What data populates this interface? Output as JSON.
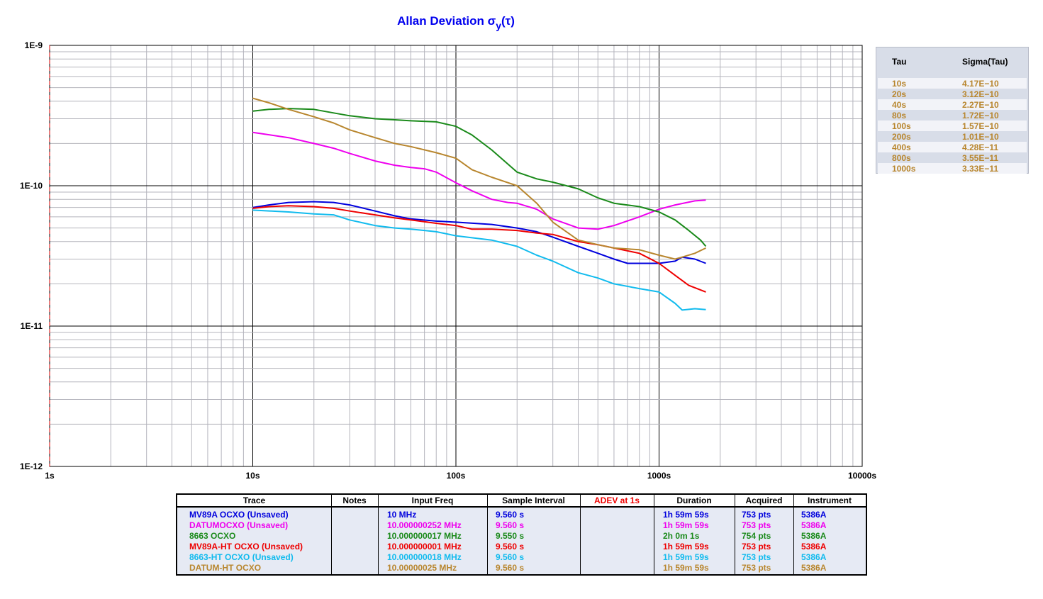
{
  "title_text": "Allan Deviation σ",
  "title_sub": "y",
  "title_tail": "(τ)",
  "chart_data": {
    "type": "line",
    "title": "Allan Deviation σy(τ)",
    "x_scale": "log",
    "y_scale": "log",
    "xlim": [
      1,
      10000
    ],
    "ylim": [
      1e-12,
      1e-09
    ],
    "grid": true,
    "x_ticks": [
      "1s",
      "10s",
      "100s",
      "1000s",
      "10000s"
    ],
    "y_ticks": [
      "1E-12",
      "1E-11",
      "1E-10",
      "1E-9"
    ],
    "series": [
      {
        "name": "MV89A OCXO (Unsaved)",
        "color": "#0000dd",
        "x": [
          10,
          12,
          15,
          20,
          25,
          30,
          40,
          50,
          60,
          80,
          100,
          150,
          200,
          250,
          300,
          400,
          500,
          600,
          700,
          800,
          1000,
          1200,
          1300,
          1500,
          1700
        ],
        "y": [
          7e-11,
          7.3e-11,
          7.6e-11,
          7.7e-11,
          7.6e-11,
          7.3e-11,
          6.6e-11,
          6.1e-11,
          5.8e-11,
          5.6e-11,
          5.5e-11,
          5.3e-11,
          5e-11,
          4.7e-11,
          4.3e-11,
          3.7e-11,
          3.3e-11,
          3e-11,
          2.8e-11,
          2.8e-11,
          2.8e-11,
          2.9e-11,
          3.1e-11,
          3e-11,
          2.8e-11
        ]
      },
      {
        "name": "DATUMOCXO (Unsaved)",
        "color": "#ee00ee",
        "x": [
          10,
          15,
          20,
          25,
          30,
          40,
          50,
          60,
          70,
          80,
          100,
          120,
          150,
          180,
          200,
          250,
          300,
          400,
          500,
          600,
          800,
          1000,
          1200,
          1500,
          1700
        ],
        "y": [
          2.4e-10,
          2.2e-10,
          2e-10,
          1.85e-10,
          1.7e-10,
          1.5e-10,
          1.4e-10,
          1.35e-10,
          1.32e-10,
          1.25e-10,
          1.05e-10,
          9.2e-11,
          8e-11,
          7.6e-11,
          7.5e-11,
          6.8e-11,
          5.8e-11,
          5e-11,
          4.9e-11,
          5.2e-11,
          6e-11,
          6.8e-11,
          7.3e-11,
          7.8e-11,
          7.9e-11
        ]
      },
      {
        "name": "8663 OCXO",
        "color": "#1a8a1a",
        "x": [
          10,
          12,
          15,
          20,
          25,
          30,
          40,
          50,
          60,
          80,
          100,
          120,
          150,
          200,
          250,
          300,
          400,
          500,
          600,
          800,
          1000,
          1200,
          1400,
          1600,
          1700
        ],
        "y": [
          3.4e-10,
          3.5e-10,
          3.55e-10,
          3.5e-10,
          3.3e-10,
          3.15e-10,
          3e-10,
          2.95e-10,
          2.9e-10,
          2.85e-10,
          2.65e-10,
          2.3e-10,
          1.8e-10,
          1.25e-10,
          1.12e-10,
          1.06e-10,
          9.5e-11,
          8.2e-11,
          7.5e-11,
          7.1e-11,
          6.5e-11,
          5.7e-11,
          4.8e-11,
          4.1e-11,
          3.7e-11
        ]
      },
      {
        "name": "MV89A-HT OCXO (Unsaved)",
        "color": "#ee0000",
        "x": [
          10,
          12,
          15,
          20,
          25,
          30,
          40,
          50,
          60,
          80,
          100,
          120,
          150,
          200,
          250,
          300,
          400,
          500,
          600,
          800,
          1000,
          1200,
          1400,
          1700
        ],
        "y": [
          6.9e-11,
          7.1e-11,
          7.2e-11,
          7.1e-11,
          6.9e-11,
          6.6e-11,
          6.2e-11,
          5.9e-11,
          5.7e-11,
          5.4e-11,
          5.2e-11,
          4.9e-11,
          4.9e-11,
          4.8e-11,
          4.6e-11,
          4.5e-11,
          4e-11,
          3.8e-11,
          3.6e-11,
          3.3e-11,
          2.8e-11,
          2.3e-11,
          1.95e-11,
          1.75e-11
        ]
      },
      {
        "name": "8663-HT OCXO (Unsaved)",
        "color": "#11bbee",
        "x": [
          10,
          15,
          20,
          25,
          30,
          40,
          50,
          60,
          70,
          80,
          100,
          150,
          200,
          250,
          300,
          400,
          500,
          600,
          800,
          1000,
          1200,
          1300,
          1500,
          1700
        ],
        "y": [
          6.7e-11,
          6.5e-11,
          6.3e-11,
          6.2e-11,
          5.7e-11,
          5.2e-11,
          5e-11,
          4.9e-11,
          4.8e-11,
          4.7e-11,
          4.4e-11,
          4.1e-11,
          3.7e-11,
          3.2e-11,
          2.9e-11,
          2.4e-11,
          2.2e-11,
          2e-11,
          1.85e-11,
          1.75e-11,
          1.45e-11,
          1.3e-11,
          1.33e-11,
          1.31e-11
        ]
      },
      {
        "name": "DATUM-HT OCXO",
        "color": "#b8862e",
        "x": [
          10,
          12,
          15,
          20,
          25,
          30,
          40,
          50,
          60,
          80,
          100,
          120,
          150,
          200,
          250,
          300,
          400,
          500,
          600,
          800,
          1000,
          1200,
          1300,
          1500,
          1700
        ],
        "y": [
          4.2e-10,
          3.9e-10,
          3.5e-10,
          3.1e-10,
          2.8e-10,
          2.5e-10,
          2.2e-10,
          2e-10,
          1.9e-10,
          1.72e-10,
          1.57e-10,
          1.3e-10,
          1.15e-10,
          1e-10,
          7.5e-11,
          5.5e-11,
          4.1e-11,
          3.8e-11,
          3.6e-11,
          3.5e-11,
          3.2e-11,
          3e-11,
          3.1e-11,
          3.3e-11,
          3.6e-11
        ]
      }
    ]
  },
  "tau_table": {
    "headers": {
      "tau": "Tau",
      "sigma": "Sigma(Tau)"
    },
    "rows": [
      {
        "tau": "10s",
        "sigma": "4.17E−10"
      },
      {
        "tau": "20s",
        "sigma": "3.12E−10"
      },
      {
        "tau": "40s",
        "sigma": "2.27E−10"
      },
      {
        "tau": "80s",
        "sigma": "1.72E−10"
      },
      {
        "tau": "100s",
        "sigma": "1.57E−10"
      },
      {
        "tau": "200s",
        "sigma": "1.01E−10"
      },
      {
        "tau": "400s",
        "sigma": "4.28E−11"
      },
      {
        "tau": "800s",
        "sigma": "3.55E−11"
      },
      {
        "tau": "1000s",
        "sigma": "3.33E−11"
      }
    ]
  },
  "legend_table": {
    "headers": [
      "Trace",
      "Notes",
      "Input Freq",
      "Sample Interval",
      "ADEV at 1s",
      "Duration",
      "Acquired",
      "Instrument"
    ],
    "adev_header_color": "#ee0000",
    "rows": [
      {
        "color": "#0000dd",
        "trace": "MV89A OCXO (Unsaved)",
        "notes": "",
        "freq": "10 MHz",
        "interval": "9.560 s",
        "adev": "",
        "duration": "1h 59m 59s",
        "acquired": "753 pts",
        "instrument": "5386A"
      },
      {
        "color": "#ee00ee",
        "trace": "DATUMOCXO (Unsaved)",
        "notes": "",
        "freq": "10.000000252 MHz",
        "interval": "9.560 s",
        "adev": "",
        "duration": "1h 59m 59s",
        "acquired": "753 pts",
        "instrument": "5386A"
      },
      {
        "color": "#1a8a1a",
        "trace": "8663 OCXO",
        "notes": "",
        "freq": "10.000000017 MHz",
        "interval": "9.550 s",
        "adev": "",
        "duration": "2h 0m 1s",
        "acquired": "754 pts",
        "instrument": "5386A"
      },
      {
        "color": "#ee0000",
        "trace": "MV89A-HT OCXO (Unsaved)",
        "notes": "",
        "freq": "10.000000001 MHz",
        "interval": "9.560 s",
        "adev": "",
        "duration": "1h 59m 59s",
        "acquired": "753 pts",
        "instrument": "5386A"
      },
      {
        "color": "#11bbee",
        "trace": "8663-HT OCXO (Unsaved)",
        "notes": "",
        "freq": "10.000000018 MHz",
        "interval": "9.560 s",
        "adev": "",
        "duration": "1h 59m 59s",
        "acquired": "753 pts",
        "instrument": "5386A"
      },
      {
        "color": "#b8862e",
        "trace": "DATUM-HT OCXO",
        "notes": "",
        "freq": "10.00000025 MHz",
        "interval": "9.560 s",
        "adev": "",
        "duration": "1h 59m 59s",
        "acquired": "753 pts",
        "instrument": "5386A"
      }
    ]
  }
}
